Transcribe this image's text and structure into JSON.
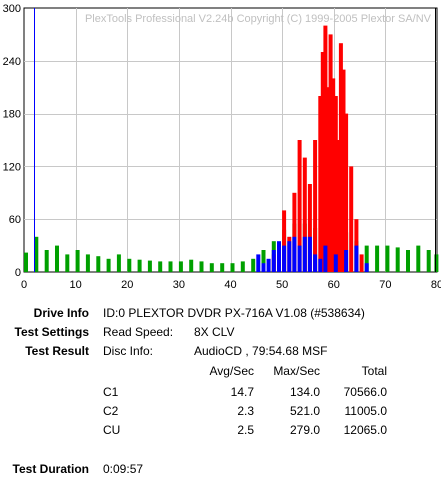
{
  "chart_data": {
    "type": "bar",
    "watermark": "PlexTools Professional V2.24b Copyright (C) 1999-2005 Plextor SA/NV",
    "xlim": [
      0,
      80
    ],
    "ylim": [
      0,
      300
    ],
    "x_ticks": [
      0,
      10,
      20,
      30,
      40,
      50,
      60,
      70,
      80
    ],
    "y_ticks": [
      0,
      60,
      120,
      180,
      240,
      300
    ],
    "grid": true,
    "series": [
      {
        "name": "C1",
        "color": "#00a000",
        "x": [
          0,
          2,
          4,
          6,
          8,
          10,
          12,
          14,
          16,
          18,
          20,
          22,
          24,
          26,
          28,
          30,
          32,
          34,
          36,
          38,
          40,
          42,
          44,
          46,
          48,
          50,
          52,
          54,
          56,
          58,
          60,
          62,
          64,
          66,
          68,
          70,
          72,
          74,
          76,
          78,
          79.5
        ],
        "values": [
          22,
          40,
          25,
          30,
          20,
          25,
          20,
          18,
          15,
          20,
          15,
          14,
          13,
          12,
          12,
          12,
          14,
          12,
          10,
          10,
          10,
          12,
          15,
          25,
          35,
          48,
          55,
          55,
          50,
          52,
          50,
          45,
          35,
          30,
          30,
          30,
          28,
          25,
          30,
          25,
          20
        ]
      },
      {
        "name": "C2",
        "color": "#ff0000",
        "x": [
          46,
          48,
          49,
          50,
          51,
          52,
          53,
          54,
          55,
          56,
          57,
          57.5,
          58,
          58.5,
          59,
          59.5,
          60,
          60.5,
          61,
          61.5,
          62,
          63,
          64,
          65
        ],
        "values": [
          5,
          20,
          30,
          70,
          40,
          90,
          150,
          130,
          100,
          150,
          200,
          250,
          280,
          210,
          270,
          220,
          200,
          150,
          260,
          230,
          180,
          120,
          60,
          20
        ]
      },
      {
        "name": "CU",
        "color": "#0000ff",
        "x": [
          45,
          46,
          47,
          48,
          49,
          50,
          51,
          52,
          53,
          54,
          55,
          56,
          57,
          58,
          60,
          62,
          64,
          66
        ],
        "values": [
          20,
          10,
          15,
          25,
          35,
          30,
          35,
          40,
          30,
          40,
          40,
          20,
          15,
          30,
          20,
          25,
          30,
          10
        ]
      }
    ],
    "markers": [
      {
        "x": 2,
        "color": "#0000ff"
      },
      {
        "x": 79.7,
        "color": "#000000"
      }
    ]
  },
  "labels": {
    "drive_info": "Drive Info",
    "test_settings": "Test Settings",
    "test_result": "Test Result",
    "test_duration": "Test Duration"
  },
  "drive_info_value": "ID:0 PLEXTOR DVDR PX-716A V1.08 (#538634)",
  "settings": {
    "read_speed_label": "Read Speed:",
    "read_speed_value": "8X CLV"
  },
  "result": {
    "disc_info_label": "Disc Info:",
    "disc_info_value": "AudioCD , 79:54.68 MSF",
    "columns": [
      "Avg/Sec",
      "Max/Sec",
      "Total"
    ],
    "rows": [
      {
        "name": "C1",
        "avg": "14.7",
        "max": "134.0",
        "total": "70566.0"
      },
      {
        "name": "C2",
        "avg": "2.3",
        "max": "521.0",
        "total": "11005.0"
      },
      {
        "name": "CU",
        "avg": "2.5",
        "max": "279.0",
        "total": "12065.0"
      }
    ]
  },
  "duration": "0:09:57"
}
